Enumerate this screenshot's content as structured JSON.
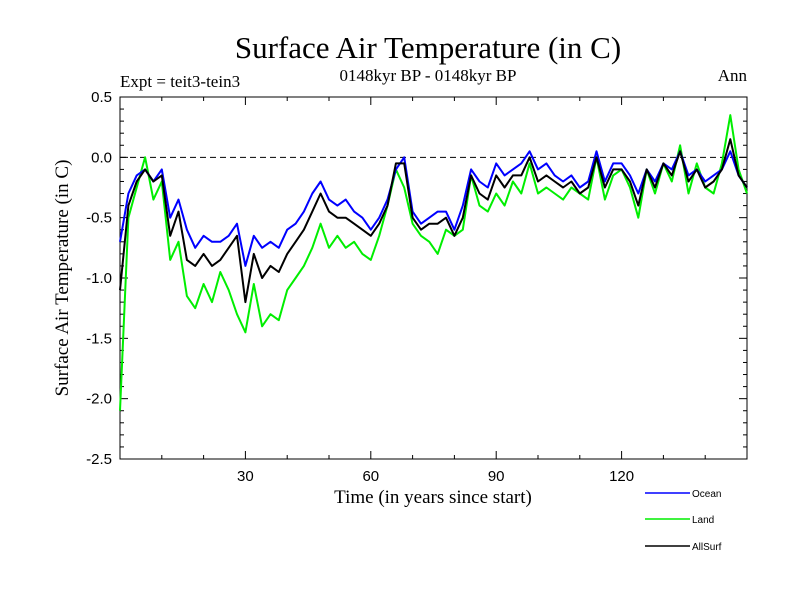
{
  "chart_data": {
    "type": "line",
    "title": "Surface Air Temperature (in C)",
    "subtitle": "0148kyr BP - 0148kyr BP",
    "left_label": "Expt = teit3-tein3",
    "right_label": "Ann",
    "xlabel": "Time (in years since start)",
    "ylabel": "Surface Air Temperature (in C)",
    "xlim": [
      0,
      150
    ],
    "ylim": [
      -2.5,
      0.5
    ],
    "xticks": [
      30,
      60,
      90,
      120
    ],
    "yticks": [
      0.5,
      0.0,
      -0.5,
      -1.0,
      -1.5,
      -2.0,
      -2.5
    ],
    "xtick_labels": [
      "30",
      "60",
      "90",
      "120"
    ],
    "ytick_labels": [
      "0.5",
      "0.0",
      "-0.5",
      "-1.0",
      "-1.5",
      "-2.0",
      "-2.5"
    ],
    "reference_line": 0.0,
    "legend_position": "bottom-right",
    "x": [
      0,
      2,
      4,
      6,
      8,
      10,
      12,
      14,
      16,
      18,
      20,
      22,
      24,
      26,
      28,
      30,
      32,
      34,
      36,
      38,
      40,
      42,
      44,
      46,
      48,
      50,
      52,
      54,
      56,
      58,
      60,
      62,
      64,
      66,
      68,
      70,
      72,
      74,
      76,
      78,
      80,
      82,
      84,
      86,
      88,
      90,
      92,
      94,
      96,
      98,
      100,
      102,
      104,
      106,
      108,
      110,
      112,
      114,
      116,
      118,
      120,
      122,
      124,
      126,
      128,
      130,
      132,
      134,
      136,
      138,
      140,
      142,
      144,
      146,
      148,
      150
    ],
    "series": [
      {
        "name": "Ocean",
        "color": "#0000ff",
        "values": [
          -0.7,
          -0.3,
          -0.15,
          -0.1,
          -0.2,
          -0.1,
          -0.5,
          -0.35,
          -0.6,
          -0.75,
          -0.65,
          -0.7,
          -0.7,
          -0.65,
          -0.55,
          -0.9,
          -0.65,
          -0.75,
          -0.7,
          -0.75,
          -0.6,
          -0.55,
          -0.45,
          -0.3,
          -0.2,
          -0.35,
          -0.4,
          -0.35,
          -0.45,
          -0.5,
          -0.6,
          -0.5,
          -0.35,
          -0.1,
          0.0,
          -0.45,
          -0.55,
          -0.5,
          -0.45,
          -0.45,
          -0.6,
          -0.4,
          -0.1,
          -0.2,
          -0.25,
          -0.05,
          -0.15,
          -0.1,
          -0.05,
          0.05,
          -0.1,
          -0.05,
          -0.15,
          -0.2,
          -0.15,
          -0.25,
          -0.2,
          0.05,
          -0.2,
          -0.05,
          -0.05,
          -0.15,
          -0.3,
          -0.1,
          -0.2,
          -0.05,
          -0.1,
          0.05,
          -0.15,
          -0.1,
          -0.2,
          -0.15,
          -0.1,
          0.05,
          -0.15,
          -0.25
        ]
      },
      {
        "name": "Land",
        "color": "#00ee00",
        "values": [
          -2.1,
          -0.5,
          -0.25,
          0.0,
          -0.35,
          -0.2,
          -0.85,
          -0.7,
          -1.15,
          -1.25,
          -1.05,
          -1.2,
          -0.95,
          -1.1,
          -1.3,
          -1.45,
          -1.05,
          -1.4,
          -1.3,
          -1.35,
          -1.1,
          -1.0,
          -0.9,
          -0.75,
          -0.55,
          -0.75,
          -0.65,
          -0.75,
          -0.7,
          -0.8,
          -0.85,
          -0.65,
          -0.4,
          -0.1,
          -0.25,
          -0.55,
          -0.65,
          -0.7,
          -0.8,
          -0.6,
          -0.65,
          -0.6,
          -0.15,
          -0.4,
          -0.45,
          -0.3,
          -0.4,
          -0.2,
          -0.3,
          -0.05,
          -0.3,
          -0.25,
          -0.3,
          -0.35,
          -0.25,
          -0.3,
          -0.35,
          0.0,
          -0.35,
          -0.15,
          -0.1,
          -0.25,
          -0.5,
          -0.1,
          -0.3,
          -0.05,
          -0.2,
          0.1,
          -0.3,
          -0.05,
          -0.25,
          -0.3,
          -0.05,
          0.35,
          -0.1,
          -0.3
        ]
      },
      {
        "name": "AllSurf",
        "color": "#000000",
        "values": [
          -1.1,
          -0.4,
          -0.2,
          -0.1,
          -0.2,
          -0.15,
          -0.65,
          -0.45,
          -0.85,
          -0.9,
          -0.8,
          -0.9,
          -0.85,
          -0.75,
          -0.65,
          -1.2,
          -0.8,
          -1.0,
          -0.9,
          -0.95,
          -0.8,
          -0.7,
          -0.6,
          -0.45,
          -0.3,
          -0.45,
          -0.5,
          -0.5,
          -0.55,
          -0.6,
          -0.65,
          -0.55,
          -0.4,
          -0.05,
          -0.05,
          -0.5,
          -0.6,
          -0.55,
          -0.55,
          -0.5,
          -0.65,
          -0.5,
          -0.15,
          -0.3,
          -0.35,
          -0.15,
          -0.25,
          -0.15,
          -0.15,
          0.0,
          -0.2,
          -0.15,
          -0.2,
          -0.25,
          -0.2,
          -0.3,
          -0.25,
          0.0,
          -0.25,
          -0.1,
          -0.1,
          -0.2,
          -0.4,
          -0.1,
          -0.25,
          -0.05,
          -0.15,
          0.05,
          -0.2,
          -0.1,
          -0.25,
          -0.2,
          -0.1,
          0.15,
          -0.15,
          -0.25
        ]
      }
    ]
  }
}
